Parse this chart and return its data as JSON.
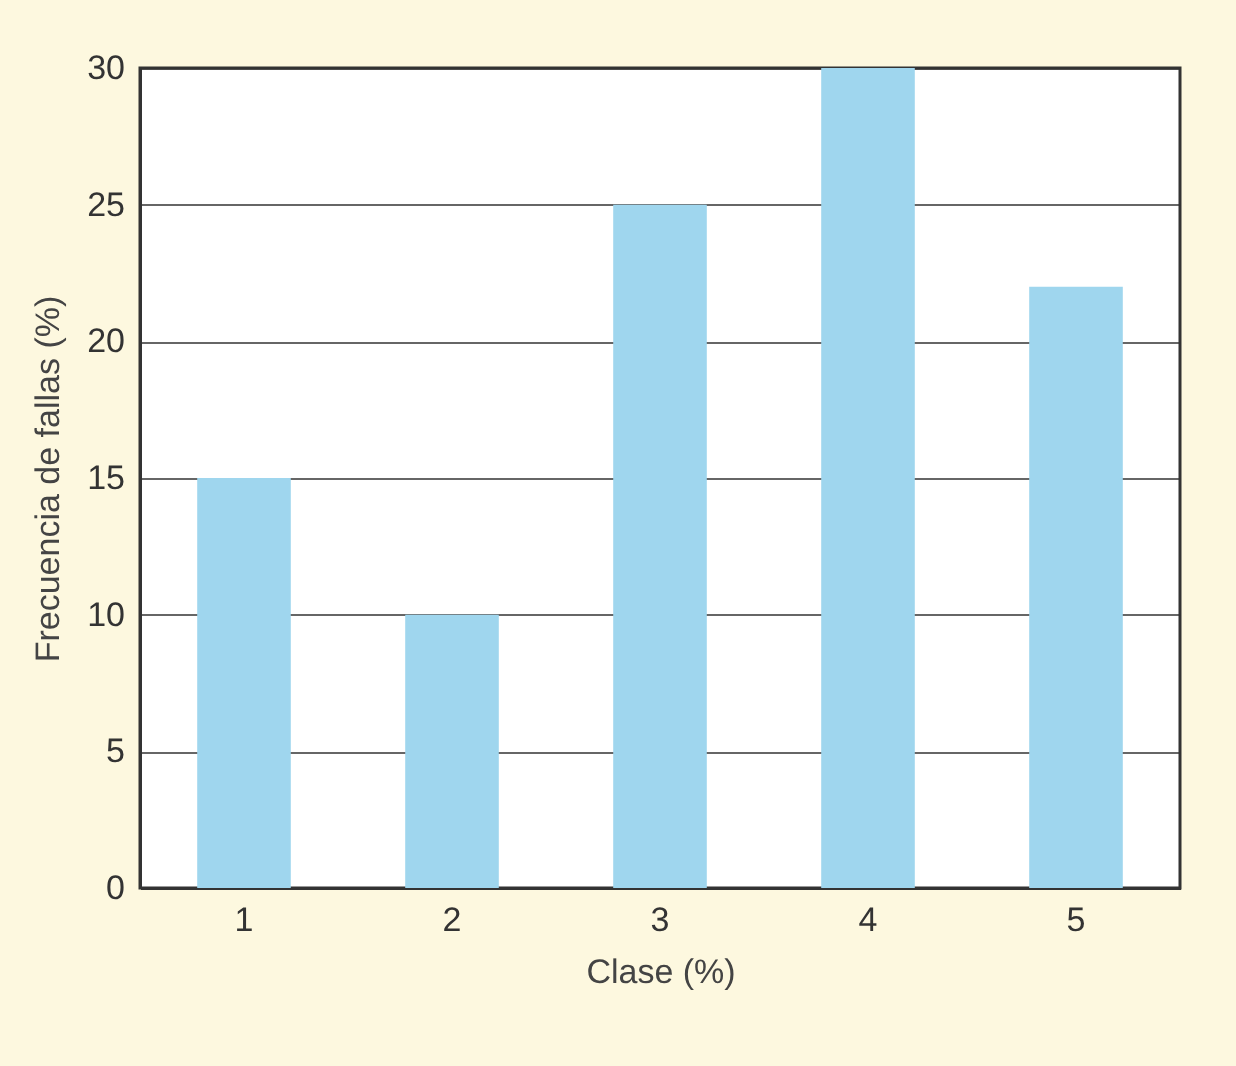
{
  "chart_data": {
    "type": "bar",
    "xlabel": "Clase (%)",
    "ylabel": "Frecuencia de fallas (%)",
    "categories": [
      "1",
      "2",
      "3",
      "4",
      "5"
    ],
    "values": [
      15,
      10,
      25,
      30,
      22
    ],
    "color": "#9fd6ee",
    "ylim": [
      0,
      30
    ],
    "yticks": [
      0,
      5,
      10,
      15,
      20,
      25,
      30
    ],
    "grid": "y"
  }
}
